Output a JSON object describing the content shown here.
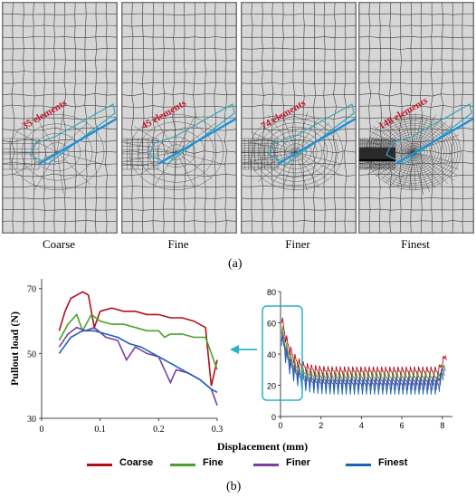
{
  "figure": {
    "part_a_label": "(a)",
    "part_b_label": "(b)"
  },
  "meshes": [
    {
      "name": "Coarse",
      "elements_label": "35 elements",
      "density": 1
    },
    {
      "name": "Fine",
      "elements_label": "45 elements",
      "density": 1.3
    },
    {
      "name": "Finer",
      "elements_label": "74 elements",
      "density": 2.2
    },
    {
      "name": "Finest",
      "elements_label": "148 elements",
      "density": 4.2
    }
  ],
  "colors": {
    "mesh_background": "#d6d6d6",
    "mesh_lines": "#3c3c3c",
    "anchor_line": "#1e90d6",
    "anchor_outline": "#3aa6b8",
    "element_text": "#c0182a",
    "highlight_box": "#27b4c8",
    "arrow": "#27b4c8"
  },
  "chart_data": [
    {
      "type": "line",
      "title": "",
      "xlabel": "Displacement (mm)",
      "ylabel": "Pullout load (N)",
      "xlim": [
        0,
        0.3
      ],
      "ylim": [
        30,
        73
      ],
      "xticks": [
        "0",
        "0.1",
        "0.2",
        "0.3"
      ],
      "yticks": [
        "30",
        "50",
        "70"
      ],
      "grid": false,
      "legend": "bottom",
      "series": [
        {
          "name": "Coarse",
          "color": "#b0101a",
          "x": [
            0.03,
            0.04,
            0.05,
            0.06,
            0.07,
            0.08,
            0.09,
            0.1,
            0.12,
            0.14,
            0.16,
            0.18,
            0.2,
            0.22,
            0.24,
            0.26,
            0.28,
            0.29,
            0.3
          ],
          "y": [
            57,
            63,
            67,
            68,
            69,
            68,
            58,
            63,
            64,
            63,
            63,
            62,
            62,
            61,
            61,
            60,
            58,
            40,
            48
          ]
        },
        {
          "name": "Fine",
          "color": "#4aa02c",
          "x": [
            0.03,
            0.045,
            0.06,
            0.07,
            0.085,
            0.1,
            0.12,
            0.14,
            0.16,
            0.18,
            0.2,
            0.21,
            0.22,
            0.24,
            0.26,
            0.28,
            0.3
          ],
          "y": [
            54,
            59,
            62,
            57,
            62,
            60,
            59,
            59,
            58,
            57,
            57,
            55,
            56,
            56,
            55,
            55,
            45
          ]
        },
        {
          "name": "Finer",
          "color": "#7a3fa0",
          "x": [
            0.03,
            0.045,
            0.06,
            0.075,
            0.09,
            0.11,
            0.13,
            0.145,
            0.16,
            0.18,
            0.2,
            0.22,
            0.23,
            0.25,
            0.27,
            0.29,
            0.3
          ],
          "y": [
            52,
            56,
            58,
            57,
            58,
            55,
            54,
            48,
            52,
            50,
            49,
            41,
            45,
            44,
            42,
            39,
            34
          ]
        },
        {
          "name": "Finest",
          "color": "#1a64b4",
          "x": [
            0.03,
            0.05,
            0.07,
            0.09,
            0.11,
            0.13,
            0.15,
            0.17,
            0.19,
            0.21,
            0.23,
            0.25,
            0.27,
            0.29,
            0.3
          ],
          "y": [
            50,
            55,
            57,
            57,
            56,
            55,
            53,
            52,
            50,
            48,
            46,
            44,
            42,
            39,
            38
          ]
        }
      ]
    },
    {
      "type": "line",
      "title": "",
      "xlabel": "",
      "ylabel": "",
      "xlim": [
        0,
        8.5
      ],
      "ylim": [
        0,
        80
      ],
      "xticks": [
        "0",
        "2",
        "4",
        "6",
        "8"
      ],
      "yticks": [
        "0",
        "20",
        "40",
        "60",
        "80"
      ],
      "grid": false,
      "series": [
        {
          "name": "Coarse",
          "color": "#b0101a",
          "peak": 68,
          "decay_to": 29,
          "tail_rise": 40,
          "end_x": 8.2
        },
        {
          "name": "Fine",
          "color": "#4aa02c",
          "peak": 62,
          "decay_to": 25,
          "tail_rise": 34,
          "end_x": 8.15
        },
        {
          "name": "Finer",
          "color": "#7a3fa0",
          "peak": 58,
          "decay_to": 23,
          "tail_rise": 32,
          "end_x": 8.1
        },
        {
          "name": "Finest",
          "color": "#1a64b4",
          "peak": 56,
          "decay_to": 21,
          "tail_rise": 30,
          "end_x": 8.05
        }
      ]
    }
  ]
}
